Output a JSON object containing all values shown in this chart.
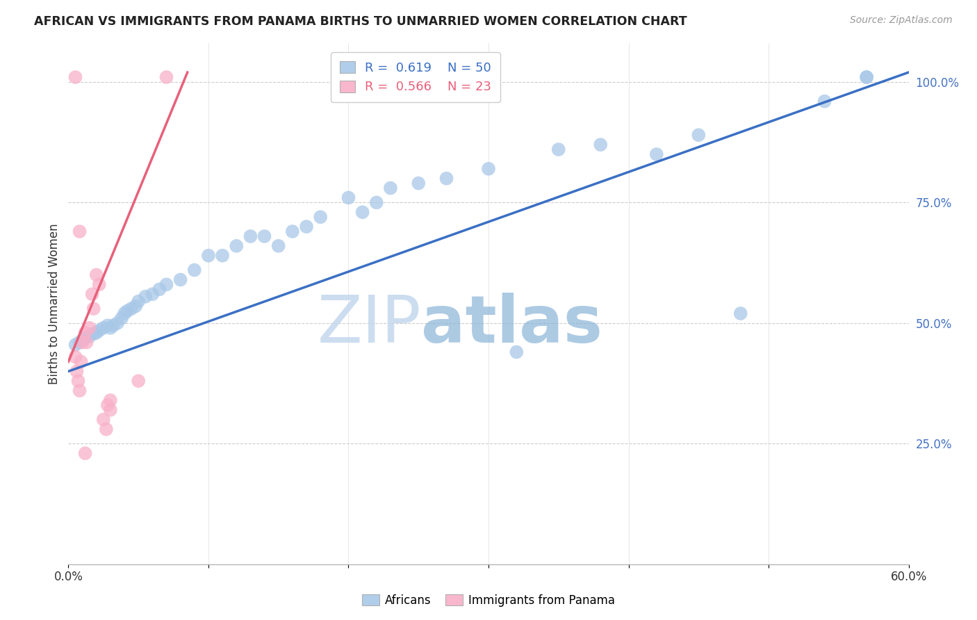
{
  "title": "AFRICAN VS IMMIGRANTS FROM PANAMA BIRTHS TO UNMARRIED WOMEN CORRELATION CHART",
  "source": "Source: ZipAtlas.com",
  "ylabel": "Births to Unmarried Women",
  "xlim": [
    0.0,
    0.6
  ],
  "ylim": [
    0.0,
    1.08
  ],
  "xticks": [
    0.0,
    0.1,
    0.2,
    0.3,
    0.4,
    0.5,
    0.6
  ],
  "xticklabels": [
    "0.0%",
    "",
    "",
    "",
    "",
    "",
    "60.0%"
  ],
  "yticks_right": [
    0.25,
    0.5,
    0.75,
    1.0
  ],
  "yticklabels_right": [
    "25.0%",
    "50.0%",
    "75.0%",
    "100.0%"
  ],
  "grid_color": "#cccccc",
  "background_color": "#ffffff",
  "blue_color": "#a8c8e8",
  "pink_color": "#f8b0c8",
  "blue_line_color": "#3a6fc4",
  "pink_line_color": "#e8607a",
  "R_blue": 0.619,
  "N_blue": 50,
  "R_pink": 0.566,
  "N_pink": 23,
  "legend_label_blue": "Africans",
  "legend_label_pink": "Immigrants from Panama",
  "watermark_zip": "ZIP",
  "watermark_atlas": "atlas",
  "blue_scatter_x": [
    0.005,
    0.008,
    0.01,
    0.012,
    0.015,
    0.018,
    0.02,
    0.022,
    0.025,
    0.028,
    0.03,
    0.032,
    0.035,
    0.038,
    0.04,
    0.042,
    0.045,
    0.048,
    0.05,
    0.055,
    0.06,
    0.065,
    0.07,
    0.08,
    0.09,
    0.1,
    0.11,
    0.12,
    0.13,
    0.14,
    0.15,
    0.16,
    0.17,
    0.18,
    0.2,
    0.21,
    0.22,
    0.23,
    0.25,
    0.27,
    0.3,
    0.32,
    0.35,
    0.38,
    0.42,
    0.45,
    0.48,
    0.54,
    0.57,
    0.57
  ],
  "blue_scatter_y": [
    0.455,
    0.46,
    0.465,
    0.47,
    0.472,
    0.478,
    0.48,
    0.485,
    0.49,
    0.495,
    0.49,
    0.495,
    0.5,
    0.51,
    0.52,
    0.525,
    0.53,
    0.535,
    0.545,
    0.555,
    0.56,
    0.57,
    0.58,
    0.59,
    0.61,
    0.64,
    0.64,
    0.66,
    0.68,
    0.68,
    0.66,
    0.69,
    0.7,
    0.72,
    0.76,
    0.73,
    0.75,
    0.78,
    0.79,
    0.8,
    0.82,
    0.44,
    0.86,
    0.87,
    0.85,
    0.89,
    0.52,
    0.96,
    1.01,
    1.01
  ],
  "pink_scatter_x": [
    0.005,
    0.006,
    0.007,
    0.008,
    0.009,
    0.01,
    0.012,
    0.013,
    0.015,
    0.017,
    0.018,
    0.02,
    0.022,
    0.025,
    0.027,
    0.028,
    0.03,
    0.03,
    0.05,
    0.07,
    0.005,
    0.008,
    0.012
  ],
  "pink_scatter_y": [
    0.43,
    0.4,
    0.38,
    0.36,
    0.42,
    0.46,
    0.48,
    0.46,
    0.49,
    0.56,
    0.53,
    0.6,
    0.58,
    0.3,
    0.28,
    0.33,
    0.34,
    0.32,
    0.38,
    1.01,
    1.01,
    0.69,
    0.23
  ],
  "blue_trend_x": [
    0.0,
    0.6
  ],
  "blue_trend_y": [
    0.4,
    1.02
  ],
  "pink_trend_x": [
    0.0,
    0.085
  ],
  "pink_trend_y": [
    0.42,
    1.02
  ]
}
